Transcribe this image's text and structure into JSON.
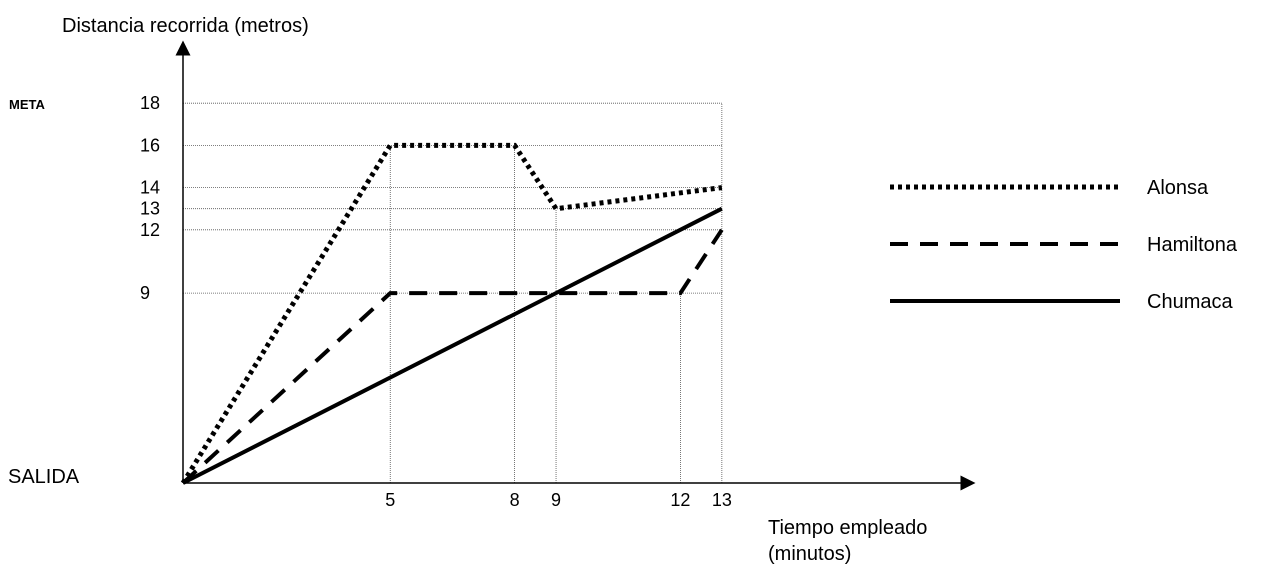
{
  "chart_data": {
    "type": "line",
    "ylabel": "Distancia recorrida (metros)",
    "xlabel_line1": "Tiempo empleado",
    "xlabel_line2": "(minutos)",
    "origin_label": "SALIDA",
    "goal_label": "META",
    "x_ticks": [
      5,
      8,
      9,
      12,
      13
    ],
    "y_ticks": [
      9,
      12,
      13,
      14,
      16,
      18
    ],
    "xlim": [
      0,
      13
    ],
    "ylim": [
      0,
      18
    ],
    "grid": "dotted reference lines at ticks",
    "legend_position": "right",
    "series": [
      {
        "name": "Alonsa",
        "style": "dotted",
        "x": [
          0,
          5,
          8,
          9,
          13
        ],
        "y": [
          0,
          16,
          16,
          13,
          14
        ]
      },
      {
        "name": "Hamiltona",
        "style": "dashed",
        "x": [
          0,
          5,
          12,
          13
        ],
        "y": [
          0,
          9,
          9,
          12
        ]
      },
      {
        "name": "Chumaca",
        "style": "solid",
        "x": [
          0,
          13
        ],
        "y": [
          0,
          13
        ]
      }
    ]
  }
}
